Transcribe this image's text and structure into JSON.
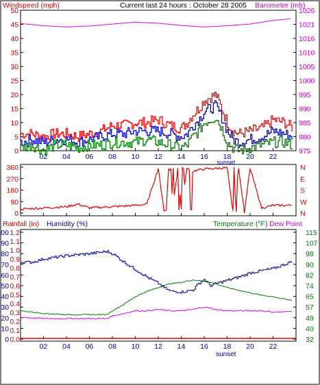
{
  "header": {
    "title": "Current last 24 hours : October 28 2005",
    "left_label": "Windspeed (mph)",
    "right_label": "Barometer (mb)"
  },
  "colors": {
    "wind_max": "#ff0000",
    "wind_avg": "#0000cc",
    "wind_min": "#008000",
    "barometer": "#e000e0",
    "direction": "#dd0000",
    "humidity": "#000099",
    "temperature": "#007700",
    "dewpoint": "#e000e0",
    "rain": "#dd0000",
    "axis_red": "#cc0000",
    "axis_blue": "#0000aa",
    "axis_green": "#007700",
    "axis_magenta": "#cc00cc"
  },
  "chart_data": [
    {
      "id": "wind-baro",
      "type": "line",
      "x_ticks": [
        "02",
        "04",
        "06",
        "08",
        "10",
        "12",
        "14",
        "16",
        "18",
        "20",
        "22"
      ],
      "x_annotation": "sunset",
      "y_left": {
        "label": "Windspeed (mph)",
        "ticks": [
          0,
          5,
          10,
          15,
          20,
          25,
          30,
          35,
          40,
          45,
          50
        ],
        "ylim": [
          0,
          50
        ]
      },
      "y_right": {
        "label": "Barometer (mb)",
        "ticks": [
          975,
          980,
          985,
          990,
          995,
          1000,
          1005,
          1010,
          1016,
          1021,
          1026
        ],
        "ylim": [
          975,
          1026
        ]
      },
      "series": [
        {
          "key": "barometer",
          "hours": [
            0,
            2,
            4,
            6,
            8,
            10,
            12,
            14,
            16,
            18,
            20,
            22,
            23.7
          ],
          "values": [
            1021.2,
            1020.4,
            1019.9,
            1020.3,
            1021.0,
            1021.7,
            1021.3,
            1020.5,
            1019.9,
            1020.4,
            1021.0,
            1022.3,
            1023.0
          ]
        },
        {
          "key": "wind_max",
          "hours": [
            0,
            1,
            2,
            3,
            4,
            5,
            6,
            7,
            8,
            9,
            10,
            11,
            12,
            13,
            14,
            14.5,
            15,
            15.5,
            16,
            16.5,
            17,
            17.5,
            18,
            18.5,
            19,
            20,
            21,
            22,
            23,
            23.7
          ],
          "values": [
            6,
            6,
            5,
            6,
            6,
            5,
            6,
            7,
            9,
            9,
            10,
            10,
            11,
            9,
            8,
            10,
            13,
            15,
            18,
            19,
            20,
            15,
            10,
            7,
            6,
            7,
            8,
            11,
            10,
            8
          ]
        },
        {
          "key": "wind_avg",
          "hours": [
            0,
            1,
            2,
            3,
            4,
            5,
            6,
            7,
            8,
            9,
            10,
            11,
            12,
            13,
            14,
            14.5,
            15,
            15.5,
            16,
            16.5,
            17,
            17.5,
            18,
            18.5,
            19,
            20,
            21,
            22,
            23,
            23.7
          ],
          "values": [
            3,
            4,
            3,
            4,
            4,
            3,
            4,
            5,
            6,
            6,
            7,
            7,
            7,
            6,
            5,
            6,
            9,
            11,
            14,
            15,
            16,
            12,
            7,
            4,
            3,
            4,
            5,
            7,
            6,
            5
          ]
        },
        {
          "key": "wind_min",
          "hours": [
            0,
            1,
            2,
            3,
            4,
            5,
            6,
            7,
            8,
            9,
            10,
            11,
            12,
            13,
            14,
            14.5,
            15,
            15.5,
            16,
            16.5,
            17,
            17.5,
            18,
            18.5,
            19,
            20,
            21,
            22,
            23,
            23.7
          ],
          "values": [
            1,
            2,
            0,
            2,
            2,
            1,
            2,
            2,
            3,
            3,
            3,
            4,
            3,
            2,
            1,
            2,
            5,
            7,
            10,
            11,
            12,
            8,
            3,
            1,
            0,
            1,
            2,
            3,
            3,
            2
          ]
        }
      ]
    },
    {
      "id": "direction",
      "type": "line",
      "y_left": {
        "ticks": [
          0,
          90,
          180,
          270,
          360
        ],
        "ylim": [
          0,
          360
        ]
      },
      "y_right": {
        "ticks": [
          "N",
          "W",
          "S",
          "E",
          "N"
        ]
      },
      "series": [
        {
          "key": "direction",
          "hours": [
            0,
            2,
            4,
            5,
            6,
            8,
            10,
            11,
            12,
            12.5,
            13,
            13.3,
            13.7,
            14,
            14.5,
            15,
            16,
            17,
            18,
            18.5,
            19,
            19.5,
            20,
            21,
            22,
            23.7
          ],
          "values": [
            30,
            40,
            50,
            70,
            40,
            50,
            60,
            70,
            350,
            20,
            340,
            60,
            350,
            30,
            350,
            330,
            345,
            350,
            355,
            10,
            355,
            10,
            350,
            40,
            60,
            60
          ]
        }
      ]
    },
    {
      "id": "humidity-temp",
      "type": "line",
      "header_left": "Rainfall (in)",
      "header_humidity": "Humidity (%)",
      "header_temp": "Temperature (°F)",
      "header_dew": "Dew Point",
      "x_ticks": [
        "02",
        "04",
        "06",
        "08",
        "10",
        "12",
        "14",
        "16",
        "18",
        "20",
        "22"
      ],
      "x_annotation": "sunset",
      "y_humidity": {
        "ticks": [
          0,
          10,
          20,
          30,
          40,
          50,
          60,
          70,
          80,
          90,
          100
        ],
        "ylim": [
          0,
          100
        ]
      },
      "y_rain": {
        "ticks": [
          "0.0",
          "0.1",
          "0.2",
          "0.3",
          "0.4",
          "0.5",
          "0.6",
          "0.7",
          "0.8",
          "0.9",
          "1.0",
          "1.1",
          "1.2"
        ]
      },
      "y_temp": {
        "ticks": [
          32,
          40,
          49,
          57,
          65,
          74,
          82,
          90,
          98,
          107,
          115
        ],
        "ylim": [
          32,
          115
        ]
      },
      "series": [
        {
          "key": "humidity",
          "hours": [
            0,
            1,
            2,
            4,
            6,
            7.5,
            8,
            9,
            10,
            11,
            12,
            12.5,
            13,
            14,
            15,
            15.5,
            16,
            16.5,
            17,
            18,
            19,
            20,
            21,
            22,
            23,
            23.7
          ],
          "values": [
            72,
            72,
            75,
            78,
            80,
            82,
            80,
            72,
            65,
            58,
            52,
            48,
            45,
            44,
            46,
            52,
            56,
            50,
            52,
            55,
            58,
            62,
            64,
            66,
            70,
            73
          ]
        },
        {
          "key": "temperature",
          "hours": [
            0,
            2,
            4,
            6,
            7.5,
            8,
            9,
            10,
            11,
            12,
            13,
            14,
            15,
            16,
            17,
            18,
            19,
            20,
            21,
            22,
            23,
            23.7
          ],
          "values": [
            54,
            52,
            51,
            51,
            51,
            54,
            59,
            65,
            69,
            72,
            75,
            76,
            78,
            77,
            75,
            72,
            70,
            68,
            66,
            65,
            63,
            62
          ]
        },
        {
          "key": "dewpoint",
          "hours": [
            0,
            2,
            4,
            6,
            7.5,
            8,
            9,
            10,
            11,
            12,
            13,
            14,
            15,
            16,
            17,
            18,
            19,
            20,
            21,
            22,
            23,
            23.7
          ],
          "values": [
            49,
            48,
            48,
            48,
            48,
            50,
            52,
            54,
            54,
            55,
            54,
            54,
            55,
            57,
            55,
            54,
            54,
            54,
            54,
            53,
            53,
            54
          ]
        },
        {
          "key": "rain",
          "hours": [
            0,
            23.7
          ],
          "values": [
            0.0,
            0.0
          ]
        }
      ]
    }
  ]
}
